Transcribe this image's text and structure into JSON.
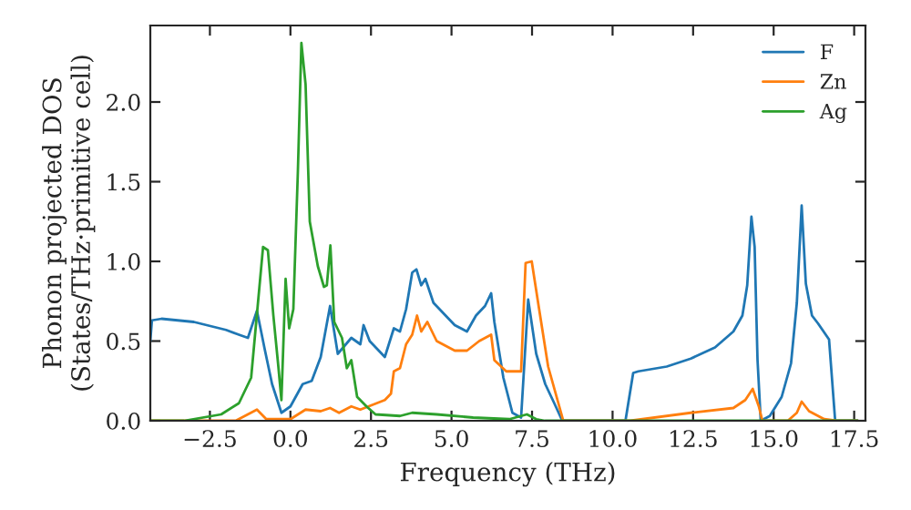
{
  "chart_data": {
    "type": "line",
    "xlabel": "Frequency (THz)",
    "ylabel": "Phonon projected DOS\n(States/THz·primitive cell)",
    "xlim": [
      -4.35,
      17.85
    ],
    "ylim": [
      0,
      2.48
    ],
    "xticks": [
      {
        "value": -2.5,
        "label": "−2.5"
      },
      {
        "value": 0,
        "label": "0.0"
      },
      2.5,
      {
        "value": 5,
        "label": "5.0"
      },
      7.5,
      {
        "value": 10,
        "label": "10.0"
      },
      12.5,
      {
        "value": 15,
        "label": "15.0"
      },
      17.5
    ],
    "yticks": [
      {
        "value": 0,
        "label": "0.0"
      },
      0.5,
      {
        "value": 1,
        "label": "1.0"
      },
      1.5,
      {
        "value": 2,
        "label": "2.0"
      }
    ],
    "grid": false,
    "legend": "top right",
    "marker": "none",
    "line_style": "solid",
    "series": [
      {
        "name": "F",
        "color": "#1f77b4",
        "x": [
          -4.35,
          -4.3,
          -4.0,
          -3.5,
          -3.0,
          -2.6,
          -2.0,
          -1.6,
          -1.32,
          -1.04,
          -0.8,
          -0.57,
          -0.28,
          0.0,
          0.38,
          0.66,
          0.94,
          1.23,
          1.47,
          1.89,
          2.17,
          2.27,
          2.46,
          2.93,
          3.21,
          3.4,
          3.59,
          3.78,
          3.91,
          4.06,
          4.19,
          4.44,
          5.1,
          5.48,
          5.76,
          6.04,
          6.23,
          6.33,
          6.61,
          6.89,
          7.16,
          7.38,
          7.63,
          7.91,
          8.19,
          8.44,
          10.4,
          10.64,
          10.8,
          11.68,
          12.43,
          13.18,
          13.75,
          14.03,
          14.18,
          14.31,
          14.41,
          14.5,
          14.6,
          14.88,
          15.25,
          15.54,
          15.72,
          15.87,
          16.0,
          16.19,
          16.38,
          16.72,
          16.91,
          17.6
        ],
        "values": [
          0.5,
          0.63,
          0.64,
          0.63,
          0.62,
          0.6,
          0.57,
          0.54,
          0.52,
          0.69,
          0.45,
          0.23,
          0.05,
          0.09,
          0.23,
          0.25,
          0.4,
          0.72,
          0.42,
          0.52,
          0.48,
          0.6,
          0.5,
          0.4,
          0.58,
          0.56,
          0.7,
          0.93,
          0.95,
          0.85,
          0.89,
          0.74,
          0.6,
          0.56,
          0.66,
          0.72,
          0.8,
          0.62,
          0.27,
          0.05,
          0.02,
          0.76,
          0.42,
          0.23,
          0.11,
          0.0,
          0.0,
          0.3,
          0.31,
          0.34,
          0.39,
          0.46,
          0.56,
          0.66,
          0.85,
          1.28,
          1.09,
          0.38,
          0.0,
          0.03,
          0.15,
          0.36,
          0.74,
          1.35,
          0.86,
          0.66,
          0.61,
          0.51,
          0.0,
          0.0
        ]
      },
      {
        "name": "Zn",
        "color": "#ff7f0e",
        "x": [
          -4.35,
          -1.7,
          -1.04,
          -0.75,
          0.0,
          0.47,
          0.94,
          1.23,
          1.51,
          1.89,
          2.17,
          2.55,
          2.93,
          3.12,
          3.21,
          3.4,
          3.59,
          3.78,
          3.93,
          4.06,
          4.25,
          4.54,
          5.1,
          5.48,
          5.86,
          6.23,
          6.33,
          6.7,
          7.16,
          7.3,
          7.49,
          7.72,
          8.0,
          8.47,
          10.55,
          12.43,
          13.75,
          14.12,
          14.35,
          14.54,
          14.65,
          15.44,
          15.72,
          15.87,
          16.1,
          16.57,
          16.95,
          17.6
        ],
        "values": [
          0.0,
          0.0,
          0.07,
          0.01,
          0.01,
          0.07,
          0.06,
          0.08,
          0.05,
          0.09,
          0.07,
          0.1,
          0.13,
          0.17,
          0.31,
          0.33,
          0.48,
          0.54,
          0.66,
          0.56,
          0.62,
          0.5,
          0.44,
          0.44,
          0.5,
          0.54,
          0.38,
          0.31,
          0.31,
          0.99,
          1.0,
          0.7,
          0.34,
          0.0,
          0.0,
          0.05,
          0.08,
          0.13,
          0.2,
          0.09,
          0.0,
          0.0,
          0.05,
          0.12,
          0.06,
          0.01,
          0.0,
          0.0
        ]
      },
      {
        "name": "Ag",
        "color": "#2ca02c",
        "x": [
          -4.35,
          -3.3,
          -2.15,
          -1.6,
          -1.22,
          -0.85,
          -0.7,
          -0.53,
          -0.38,
          -0.28,
          -0.15,
          -0.04,
          0.09,
          0.23,
          0.34,
          0.47,
          0.6,
          0.85,
          1.04,
          1.13,
          1.24,
          1.36,
          1.6,
          1.75,
          1.89,
          2.07,
          2.36,
          2.64,
          3.4,
          3.78,
          4.54,
          5.67,
          6.8,
          7.34,
          7.63,
          7.9,
          17.6
        ],
        "values": [
          0.0,
          0.0,
          0.04,
          0.11,
          0.27,
          1.09,
          1.07,
          0.66,
          0.35,
          0.13,
          0.89,
          0.58,
          0.7,
          1.56,
          2.37,
          2.11,
          1.25,
          0.97,
          0.84,
          0.85,
          1.1,
          0.62,
          0.52,
          0.33,
          0.38,
          0.15,
          0.09,
          0.04,
          0.03,
          0.05,
          0.04,
          0.02,
          0.01,
          0.04,
          0.01,
          0.0,
          0.0
        ]
      }
    ]
  }
}
